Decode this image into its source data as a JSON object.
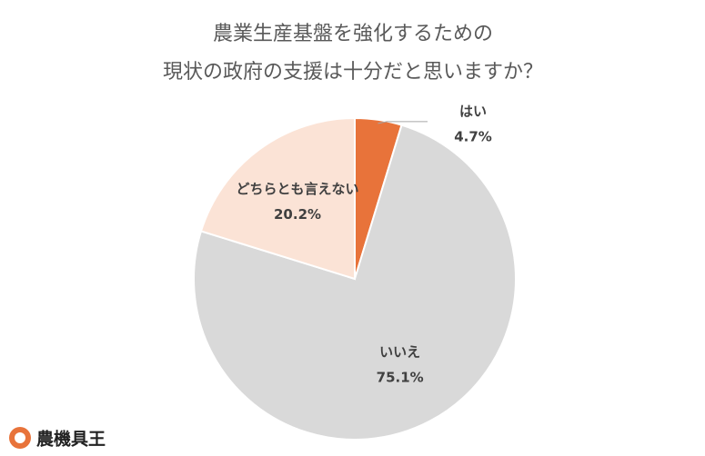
{
  "chart_data": {
    "type": "pie",
    "title": [
      "農業生産基盤を強化するための",
      "現状の政府の支援は十分だと思いますか？"
    ],
    "categories": [
      "はい",
      "いいえ",
      "どちらとも言えない"
    ],
    "values": [
      4.7,
      75.1,
      20.2
    ],
    "value_labels": [
      "4.7%",
      "75.1%",
      "20.2%"
    ],
    "colors": [
      "#e8733a",
      "#d9d9d9",
      "#fbe3d6"
    ]
  },
  "logo": {
    "text": "農機具王"
  }
}
